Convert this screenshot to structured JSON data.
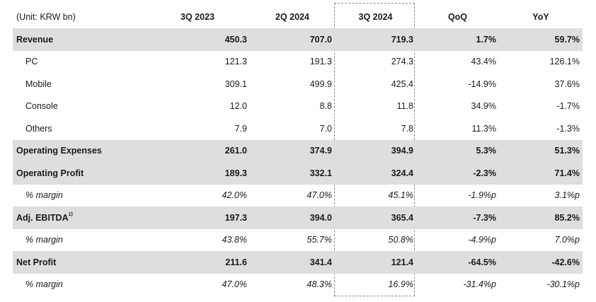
{
  "header": {
    "unit": "(Unit: KRW bn)",
    "columns": [
      "3Q 2023",
      "2Q 2024",
      "3Q 2024",
      "QoQ",
      "YoY"
    ]
  },
  "rows": [
    {
      "label": "Revenue",
      "values": [
        "450.3",
        "707.0",
        "719.3",
        "1.7%",
        "59.7%"
      ]
    },
    {
      "label": "PC",
      "values": [
        "121.3",
        "191.3",
        "274.3",
        "43.4%",
        "126.1%"
      ]
    },
    {
      "label": "Mobile",
      "values": [
        "309.1",
        "499.9",
        "425.4",
        "-14.9%",
        "37.6%"
      ]
    },
    {
      "label": "Console",
      "values": [
        "12.0",
        "8.8",
        "11.8",
        "34.9%",
        "-1.7%"
      ]
    },
    {
      "label": "Others",
      "values": [
        "7.9",
        "7.0",
        "7.8",
        "11.3%",
        "-1.3%"
      ]
    },
    {
      "label": "Operating Expenses",
      "values": [
        "261.0",
        "374.9",
        "394.9",
        "5.3%",
        "51.3%"
      ]
    },
    {
      "label": "Operating Profit",
      "values": [
        "189.3",
        "332.1",
        "324.4",
        "-2.3%",
        "71.4%"
      ]
    },
    {
      "label": "% margin",
      "values": [
        "42.0%",
        "47.0%",
        "45.1%",
        "-1.9%p",
        "3.1%p"
      ]
    },
    {
      "label": "Adj. EBITDA",
      "footnote": "1)",
      "values": [
        "197.3",
        "394.0",
        "365.4",
        "-7.3%",
        "85.2%"
      ]
    },
    {
      "label": "% margin",
      "values": [
        "43.8%",
        "55.7%",
        "50.8%",
        "-4.9%p",
        "7.0%p"
      ]
    },
    {
      "label": "Net Profit",
      "values": [
        "211.6",
        "341.4",
        "121.4",
        "-64.5%",
        "-42.6%"
      ]
    },
    {
      "label": "% margin",
      "values": [
        "47.0%",
        "48.3%",
        "16.9%",
        "-31.4%p",
        "-30.1%p"
      ]
    }
  ]
}
